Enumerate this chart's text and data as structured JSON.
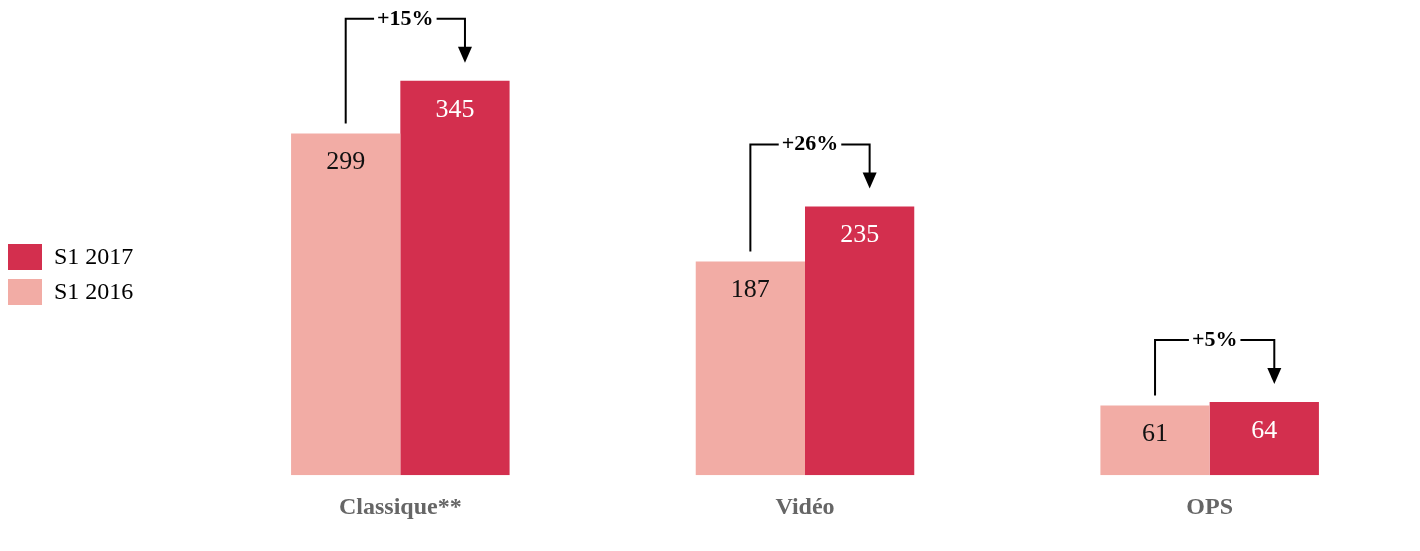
{
  "chart_data": {
    "type": "bar",
    "categories": [
      "Classique**",
      "Vidéo",
      "OPS"
    ],
    "series": [
      {
        "name": "S1 2016",
        "color": "#f2aca5",
        "values": [
          299,
          187,
          61
        ]
      },
      {
        "name": "S1 2017",
        "color": "#d32f4e",
        "values": [
          345,
          235,
          64
        ]
      }
    ],
    "tick_labels": "x",
    "data_labels": true,
    "legend": "left",
    "grid": false,
    "annotations": [
      "+15%",
      "+26%",
      "+5%"
    ]
  }
}
